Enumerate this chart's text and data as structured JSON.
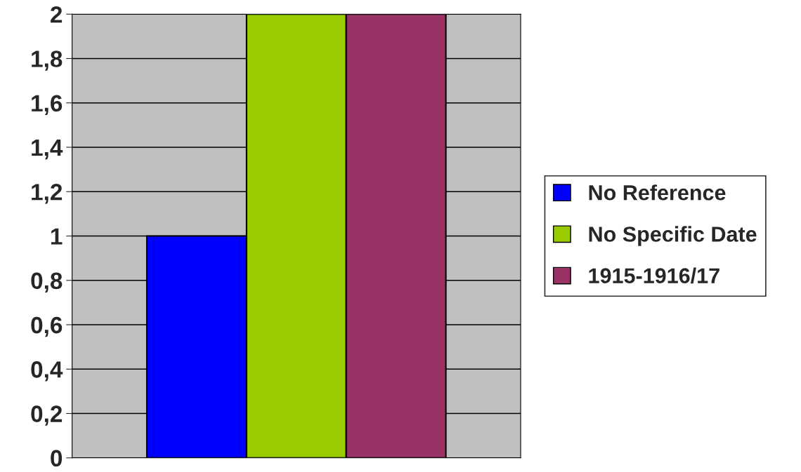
{
  "chart_data": {
    "type": "bar",
    "categories": [
      null
    ],
    "series": [
      {
        "name": "No Reference",
        "color": "#0000ff",
        "values": [
          1
        ]
      },
      {
        "name": "No Specific Date",
        "color": "#99cc00",
        "values": [
          2
        ]
      },
      {
        "name": "1915-1916/17",
        "color": "#993366",
        "values": [
          2
        ]
      }
    ],
    "ylim": [
      0,
      2
    ],
    "yticks": [
      0,
      {
        "value": 0.2,
        "label": "0,2"
      },
      {
        "value": 0.4,
        "label": "0,4"
      },
      {
        "value": 0.6,
        "label": "0,6"
      },
      {
        "value": 0.8,
        "label": "0,8"
      },
      1,
      {
        "value": 1.2,
        "label": "1,2"
      },
      {
        "value": 1.4,
        "label": "1,4"
      },
      {
        "value": 1.6,
        "label": "1,6"
      },
      {
        "value": 1.8,
        "label": "1,8"
      },
      2
    ],
    "grid": "y",
    "legend": "right"
  }
}
